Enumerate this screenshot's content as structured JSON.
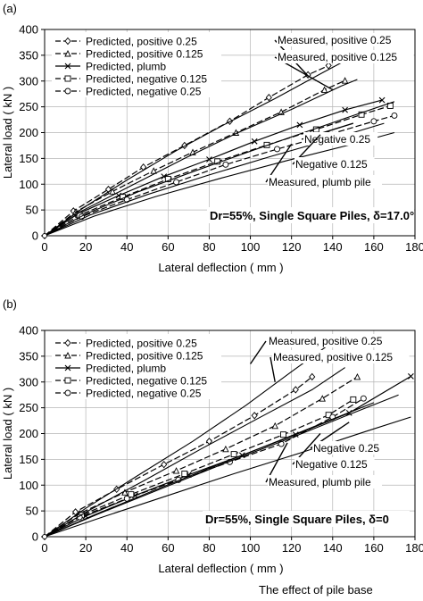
{
  "panels": [
    {
      "id": "a",
      "label": "(a)"
    },
    {
      "id": "b",
      "label": "(b)"
    }
  ],
  "footer_text": "The effect of pile base",
  "chart_data": [
    {
      "type": "line",
      "panel_label": "(a)",
      "xlabel": "Lateral deflection ( mm )",
      "ylabel": "Lateral load ( kN )",
      "xlim": [
        0,
        180
      ],
      "ylim": [
        0,
        400
      ],
      "xticks": [
        0,
        20,
        40,
        60,
        80,
        100,
        120,
        140,
        160,
        180
      ],
      "yticks": [
        0,
        50,
        100,
        150,
        200,
        250,
        300,
        350,
        400
      ],
      "grid": true,
      "legend_position": "top-left",
      "condition_text": "Dr=55%, Single Square Piles, δ=17.0°",
      "annotations": [
        "Measured, positive 0.25",
        "Measured, positive 0.125",
        "Negative 0.25",
        "Negative 0.125",
        "Measured, plumb pile"
      ],
      "series": [
        {
          "name": "Predicted, positive 0.25",
          "marker": "diamond",
          "dash": "dashed",
          "x": [
            0,
            14,
            31,
            48,
            68,
            90,
            109,
            128,
            138
          ],
          "y": [
            0,
            48,
            90,
            133,
            175,
            222,
            268,
            312,
            330
          ]
        },
        {
          "name": "Predicted, positive 0.125",
          "marker": "triangle",
          "dash": "dashed",
          "x": [
            0,
            15,
            33,
            53,
            72,
            93,
            115,
            136,
            146
          ],
          "y": [
            0,
            46,
            86,
            126,
            162,
            200,
            240,
            283,
            301
          ]
        },
        {
          "name": "Predicted, plumb",
          "marker": "x",
          "dash": "solid",
          "x": [
            0,
            16,
            36,
            58,
            80,
            102,
            124,
            146,
            164
          ],
          "y": [
            0,
            42,
            78,
            115,
            148,
            183,
            215,
            244,
            263
          ]
        },
        {
          "name": "Predicted, negative 0.125",
          "marker": "square",
          "dash": "dashed",
          "x": [
            0,
            17,
            38,
            60,
            84,
            108,
            132,
            154,
            168
          ],
          "y": [
            0,
            40,
            75,
            110,
            144,
            176,
            206,
            235,
            252
          ]
        },
        {
          "name": "Predicted, negative 0.25",
          "marker": "circle",
          "dash": "dashed",
          "x": [
            0,
            18,
            40,
            64,
            88,
            113,
            138,
            160,
            170
          ],
          "y": [
            0,
            37,
            70,
            104,
            138,
            168,
            196,
            222,
            233
          ]
        },
        {
          "name": "Measured, positive 0.25",
          "marker": "none",
          "dash": "solid",
          "x": [
            0,
            18,
            40,
            64,
            88,
            112,
            135,
            144
          ],
          "y": [
            0,
            52,
            108,
            165,
            217,
            266,
            316,
            335
          ]
        },
        {
          "name": "Measured, positive 0.125",
          "marker": "none",
          "dash": "solid",
          "x": [
            0,
            18,
            42,
            68,
            94,
            120,
            144,
            152
          ],
          "y": [
            0,
            48,
            97,
            150,
            200,
            245,
            290,
            303
          ]
        },
        {
          "name": "Measured, plumb pile",
          "marker": "none",
          "dash": "solid",
          "x": [
            0,
            20,
            46,
            74,
            100,
            126,
            150,
            170
          ],
          "y": [
            0,
            42,
            86,
            127,
            164,
            200,
            233,
            260
          ]
        },
        {
          "name": "Negative 0.125",
          "marker": "none",
          "dash": "solid",
          "x": [
            0,
            22,
            50,
            80,
            110,
            140,
            165
          ],
          "y": [
            0,
            40,
            80,
            118,
            154,
            188,
            218
          ]
        },
        {
          "name": "Negative 0.25",
          "marker": "none",
          "dash": "solid",
          "x": [
            0,
            24,
            54,
            86,
            118,
            148,
            170
          ],
          "y": [
            0,
            38,
            76,
            112,
            146,
            176,
            200
          ]
        }
      ]
    },
    {
      "type": "line",
      "panel_label": "(b)",
      "xlabel": "Lateral deflection ( mm )",
      "ylabel": "Lateral load ( kN )",
      "xlim": [
        0,
        180
      ],
      "ylim": [
        0,
        400
      ],
      "xticks": [
        0,
        20,
        40,
        60,
        80,
        100,
        120,
        140,
        160,
        180
      ],
      "yticks": [
        0,
        50,
        100,
        150,
        200,
        250,
        300,
        350,
        400
      ],
      "grid": true,
      "legend_position": "top-left",
      "condition_text": "Dr=55%, Single Square Piles, δ=0",
      "annotations": [
        "Measured, positive 0.25",
        "Measured, positive 0.125",
        "Negative 0.25",
        "Negative 0.125",
        "Measured, plumb pile"
      ],
      "series": [
        {
          "name": "Predicted, positive 0.25",
          "marker": "diamond",
          "dash": "dashed",
          "x": [
            0,
            15,
            35,
            58,
            80,
            102,
            122,
            130
          ],
          "y": [
            0,
            48,
            92,
            140,
            185,
            235,
            285,
            310
          ]
        },
        {
          "name": "Predicted, positive 0.125",
          "marker": "triangle",
          "dash": "dashed",
          "x": [
            0,
            17,
            39,
            64,
            88,
            112,
            135,
            152
          ],
          "y": [
            0,
            45,
            86,
            128,
            170,
            215,
            268,
            310
          ]
        },
        {
          "name": "Predicted, plumb",
          "marker": "x",
          "dash": "solid",
          "x": [
            0,
            20,
            44,
            70,
            96,
            122,
            148,
            178
          ],
          "y": [
            0,
            40,
            80,
            120,
            158,
            198,
            240,
            311
          ]
        },
        {
          "name": "Predicted, negative 0.125",
          "marker": "square",
          "dash": "dashed",
          "x": [
            0,
            18,
            42,
            68,
            92,
            116,
            138,
            150
          ],
          "y": [
            0,
            42,
            82,
            122,
            160,
            198,
            236,
            266
          ]
        },
        {
          "name": "Predicted, negative 0.25",
          "marker": "circle",
          "dash": "dashed",
          "x": [
            0,
            17,
            40,
            65,
            90,
            115,
            140,
            155
          ],
          "y": [
            0,
            38,
            74,
            110,
            145,
            180,
            232,
            268
          ]
        },
        {
          "name": "Measured, positive 0.25",
          "marker": "none",
          "dash": "solid",
          "x": [
            0,
            20,
            45,
            72,
            98,
            120,
            138
          ],
          "y": [
            0,
            55,
            118,
            185,
            255,
            320,
            372
          ]
        },
        {
          "name": "Measured, positive 0.125",
          "marker": "none",
          "dash": "solid",
          "x": [
            0,
            22,
            48,
            76,
            104,
            130,
            146
          ],
          "y": [
            0,
            52,
            108,
            170,
            230,
            285,
            328
          ]
        },
        {
          "name": "Measured, plumb pile",
          "marker": "none",
          "dash": "solid",
          "x": [
            0,
            24,
            52,
            82,
            112,
            140,
            160
          ],
          "y": [
            0,
            42,
            88,
            136,
            183,
            228,
            260
          ]
        },
        {
          "name": "Negative 0.25",
          "marker": "none",
          "dash": "solid",
          "x": [
            0,
            26,
            56,
            88,
            120,
            150,
            172
          ],
          "y": [
            0,
            44,
            92,
            143,
            192,
            240,
            275
          ]
        },
        {
          "name": "Negative 0.125",
          "marker": "none",
          "dash": "solid",
          "x": [
            0,
            28,
            60,
            92,
            124,
            156,
            178
          ],
          "y": [
            0,
            38,
            80,
            122,
            162,
            204,
            232
          ]
        }
      ]
    }
  ]
}
